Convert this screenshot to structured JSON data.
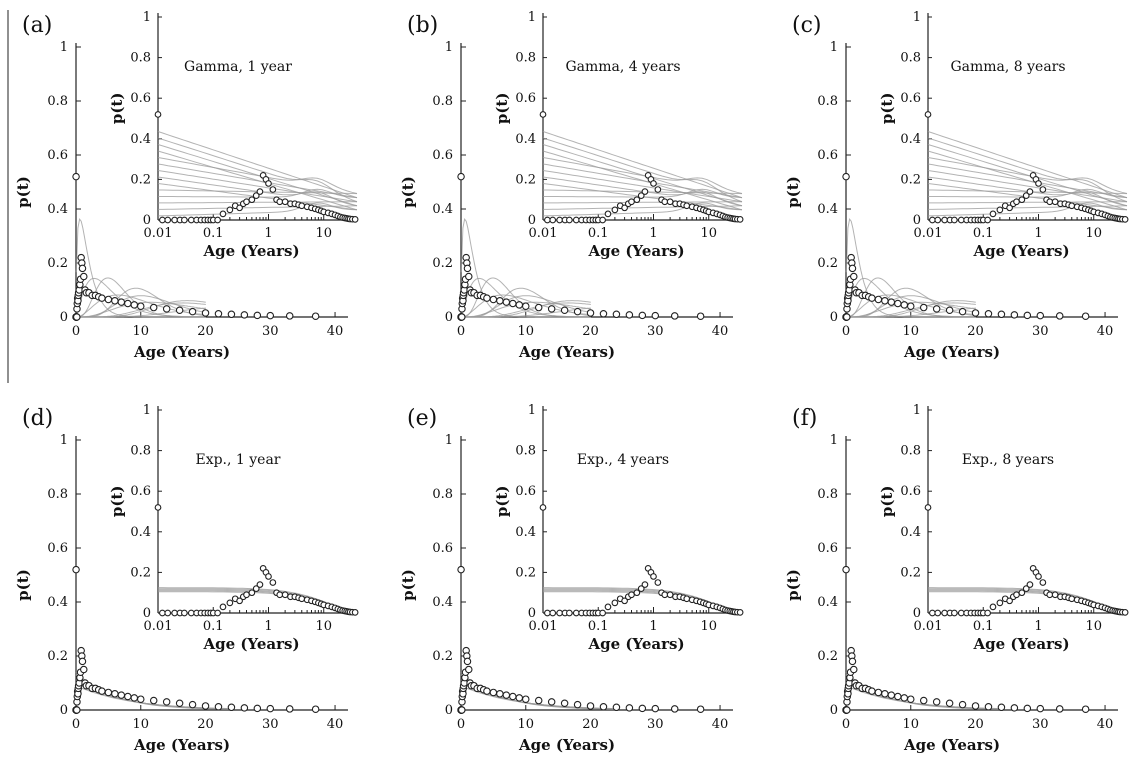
{
  "chart_data": [
    {
      "panel": "(a)",
      "type": "scatter",
      "inset_title": "Gamma, 1 year",
      "model": "gamma",
      "xlabel": "Age (Years)",
      "ylabel": "p(t)",
      "xlim": [
        0,
        42
      ],
      "ylim": [
        0,
        1
      ],
      "x_ticks": [
        0,
        10,
        20,
        30,
        40
      ],
      "y_ticks": [
        0,
        0.2,
        0.4,
        0.6,
        0.8,
        1
      ],
      "inset": {
        "xscale": "log",
        "xlim": [
          0.01,
          40
        ],
        "x_ticks": [
          0.01,
          0.1,
          1,
          10
        ],
        "x_tick_labels": [
          "0.01",
          "0.1",
          "1",
          "10"
        ],
        "ylabel": "p(t)",
        "xlabel": "Age (Years)",
        "ylim": [
          0,
          1
        ],
        "y_ticks": [
          0,
          0.2,
          0.4,
          0.6,
          0.8,
          1
        ]
      },
      "grid": false
    },
    {
      "panel": "(b)",
      "type": "scatter",
      "inset_title": "Gamma, 4 years",
      "model": "gamma",
      "xlabel": "Age (Years)",
      "ylabel": "p(t)",
      "xlim": [
        0,
        42
      ],
      "ylim": [
        0,
        1
      ],
      "x_ticks": [
        0,
        10,
        20,
        30,
        40
      ],
      "y_ticks": [
        0,
        0.2,
        0.4,
        0.6,
        0.8,
        1
      ],
      "inset": {
        "xscale": "log",
        "xlim": [
          0.01,
          40
        ],
        "x_ticks": [
          0.01,
          0.1,
          1,
          10
        ],
        "x_tick_labels": [
          "0.01",
          "0.1",
          "1",
          "10"
        ],
        "ylabel": "p(t)",
        "xlabel": "Age (Years)",
        "ylim": [
          0,
          1
        ],
        "y_ticks": [
          0,
          0.2,
          0.4,
          0.6,
          0.8,
          1
        ]
      },
      "grid": false
    },
    {
      "panel": "(c)",
      "type": "scatter",
      "inset_title": "Gamma, 8 years",
      "model": "gamma",
      "xlabel": "Age (Years)",
      "ylabel": "p(t)",
      "xlim": [
        0,
        42
      ],
      "ylim": [
        0,
        1
      ],
      "x_ticks": [
        0,
        10,
        20,
        30,
        40
      ],
      "y_ticks": [
        0,
        0.2,
        0.4,
        0.6,
        0.8,
        1
      ],
      "inset": {
        "xscale": "log",
        "xlim": [
          0.01,
          40
        ],
        "x_ticks": [
          0.01,
          0.1,
          1,
          10
        ],
        "x_tick_labels": [
          "0.01",
          "0.1",
          "1",
          "10"
        ],
        "ylabel": "p(t)",
        "xlabel": "Age (Years)",
        "ylim": [
          0,
          1
        ],
        "y_ticks": [
          0,
          0.2,
          0.4,
          0.6,
          0.8,
          1
        ]
      },
      "grid": false
    },
    {
      "panel": "(d)",
      "type": "scatter",
      "inset_title": "Exp., 1 year",
      "model": "exponential",
      "xlabel": "Age (Years)",
      "ylabel": "p(t)",
      "xlim": [
        0,
        42
      ],
      "ylim": [
        0,
        1
      ],
      "x_ticks": [
        0,
        10,
        20,
        30,
        40
      ],
      "y_ticks": [
        0,
        0.2,
        0.4,
        0.6,
        0.8,
        1
      ],
      "inset": {
        "xscale": "log",
        "xlim": [
          0.01,
          40
        ],
        "x_ticks": [
          0.01,
          0.1,
          1,
          10
        ],
        "x_tick_labels": [
          "0.01",
          "0.1",
          "1",
          "10"
        ],
        "ylabel": "p(t)",
        "xlabel": "Age (Years)",
        "ylim": [
          0,
          1
        ],
        "y_ticks": [
          0,
          0.2,
          0.4,
          0.6,
          0.8,
          1
        ]
      },
      "grid": false
    },
    {
      "panel": "(e)",
      "type": "scatter",
      "inset_title": "Exp., 4 years",
      "model": "exponential",
      "xlabel": "Age (Years)",
      "ylabel": "p(t)",
      "xlim": [
        0,
        42
      ],
      "ylim": [
        0,
        1
      ],
      "x_ticks": [
        0,
        10,
        20,
        30,
        40
      ],
      "y_ticks": [
        0,
        0.2,
        0.4,
        0.6,
        0.8,
        1
      ],
      "inset": {
        "xscale": "log",
        "xlim": [
          0.01,
          40
        ],
        "x_ticks": [
          0.01,
          0.1,
          1,
          10
        ],
        "x_tick_labels": [
          "0.01",
          "0.1",
          "1",
          "10"
        ],
        "ylabel": "p(t)",
        "xlabel": "Age (Years)",
        "ylim": [
          0,
          1
        ],
        "y_ticks": [
          0,
          0.2,
          0.4,
          0.6,
          0.8,
          1
        ]
      },
      "grid": false
    },
    {
      "panel": "(f)",
      "type": "scatter",
      "inset_title": "Exp., 8 years",
      "model": "exponential",
      "xlabel": "Age (Years)",
      "ylabel": "p(t)",
      "xlim": [
        0,
        42
      ],
      "ylim": [
        0,
        1
      ],
      "x_ticks": [
        0,
        10,
        20,
        30,
        40
      ],
      "y_ticks": [
        0,
        0.2,
        0.4,
        0.6,
        0.8,
        1
      ],
      "inset": {
        "xscale": "log",
        "xlim": [
          0.01,
          40
        ],
        "x_ticks": [
          0.01,
          0.1,
          1,
          10
        ],
        "x_tick_labels": [
          "0.01",
          "0.1",
          "1",
          "10"
        ],
        "ylabel": "p(t)",
        "xlabel": "Age (Years)",
        "ylim": [
          0,
          1
        ],
        "y_ticks": [
          0,
          0.2,
          0.4,
          0.6,
          0.8,
          1
        ]
      },
      "grid": false
    }
  ],
  "observed_data": {
    "x": [
      0.01,
      0.012,
      0.015,
      0.02,
      0.025,
      0.03,
      0.04,
      0.05,
      0.06,
      0.07,
      0.08,
      0.09,
      0.1,
      0.12,
      0.15,
      0.2,
      0.25,
      0.3,
      0.35,
      0.4,
      0.5,
      0.6,
      0.7,
      0.8,
      0.9,
      1.0,
      1.2,
      1.4,
      1.6,
      2.0,
      2.5,
      3.0,
      3.5,
      4.0,
      5.0,
      6.0,
      7.0,
      8.0,
      9.0,
      10.0,
      12.0,
      14.0,
      16.0,
      18.0,
      20.0,
      22.0,
      24.0,
      26.0,
      28.0,
      30.0,
      33.0,
      37.0
    ],
    "y": [
      0.52,
      0.0,
      0.0,
      0.0,
      0.0,
      0.0,
      0.0,
      0.0,
      0.0,
      0.0,
      0.0,
      0.0,
      0.0,
      0.0,
      0.03,
      0.05,
      0.07,
      0.06,
      0.08,
      0.09,
      0.1,
      0.12,
      0.14,
      0.22,
      0.2,
      0.18,
      0.15,
      0.1,
      0.09,
      0.09,
      0.08,
      0.08,
      0.075,
      0.07,
      0.065,
      0.06,
      0.055,
      0.05,
      0.045,
      0.04,
      0.035,
      0.03,
      0.025,
      0.02,
      0.015,
      0.012,
      0.01,
      0.008,
      0.006,
      0.005,
      0.004,
      0.003
    ]
  }
}
